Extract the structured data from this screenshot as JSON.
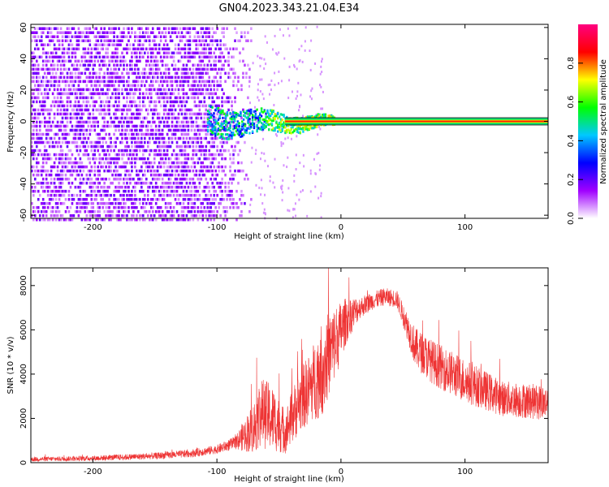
{
  "title": "GN04.2023.343.21.04.E34",
  "chart_data": [
    {
      "type": "heatmap",
      "xlabel": "Height of straight line (km)",
      "ylabel": "Frequency (Hz)",
      "xlim": [
        -250,
        167
      ],
      "ylim": [
        -62,
        62
      ],
      "x_ticks": [
        -200,
        -100,
        0,
        100
      ],
      "y_ticks": [
        -60,
        -40,
        -20,
        0,
        20,
        40,
        60
      ],
      "colorbar": {
        "label": "Normalized spectral amplitude",
        "range": [
          0,
          1
        ],
        "ticks": [
          0.0,
          0.2,
          0.4,
          0.6,
          0.8
        ],
        "colormap": "rainbow",
        "colors": [
          "#ffffff",
          "#a000ff",
          "#0000ff",
          "#00c8ff",
          "#00ff00",
          "#ffff00",
          "#ff0000",
          "#ff0080"
        ]
      },
      "noise_region_x": [
        -250,
        -75
      ],
      "carrier_band": {
        "x_start": -45,
        "x_end": 167,
        "freq_hz": 0
      }
    },
    {
      "type": "line",
      "xlabel": "Height of straight line (km)",
      "ylabel": "SNR (10 * v/v)",
      "xlim": [
        -250,
        167
      ],
      "ylim": [
        0,
        8800
      ],
      "x_ticks": [
        -200,
        -100,
        0,
        100
      ],
      "y_ticks": [
        0,
        2000,
        4000,
        6000,
        8000
      ],
      "series": [
        {
          "color": "#ee3333",
          "envelope_x": [
            -250,
            -200,
            -150,
            -120,
            -100,
            -85,
            -70,
            -65,
            -55,
            -45,
            -35,
            -25,
            -15,
            -5,
            5,
            15,
            25,
            35,
            45,
            50,
            60,
            75,
            100,
            130,
            167
          ],
          "envelope_y": [
            150,
            200,
            300,
            420,
            600,
            900,
            1600,
            2300,
            2000,
            1400,
            2600,
            3400,
            4300,
            5400,
            6500,
            7000,
            7300,
            7500,
            7400,
            6700,
            5200,
            4500,
            3700,
            2900,
            2700
          ],
          "noise_amplitude": [
            100,
            120,
            150,
            180,
            200,
            300,
            1200,
            1600,
            1500,
            1000,
            1400,
            1600,
            2200,
            1700,
            1000,
            500,
            400,
            400,
            400,
            500,
            900,
            1000,
            1000,
            800,
            800
          ]
        }
      ]
    }
  ]
}
